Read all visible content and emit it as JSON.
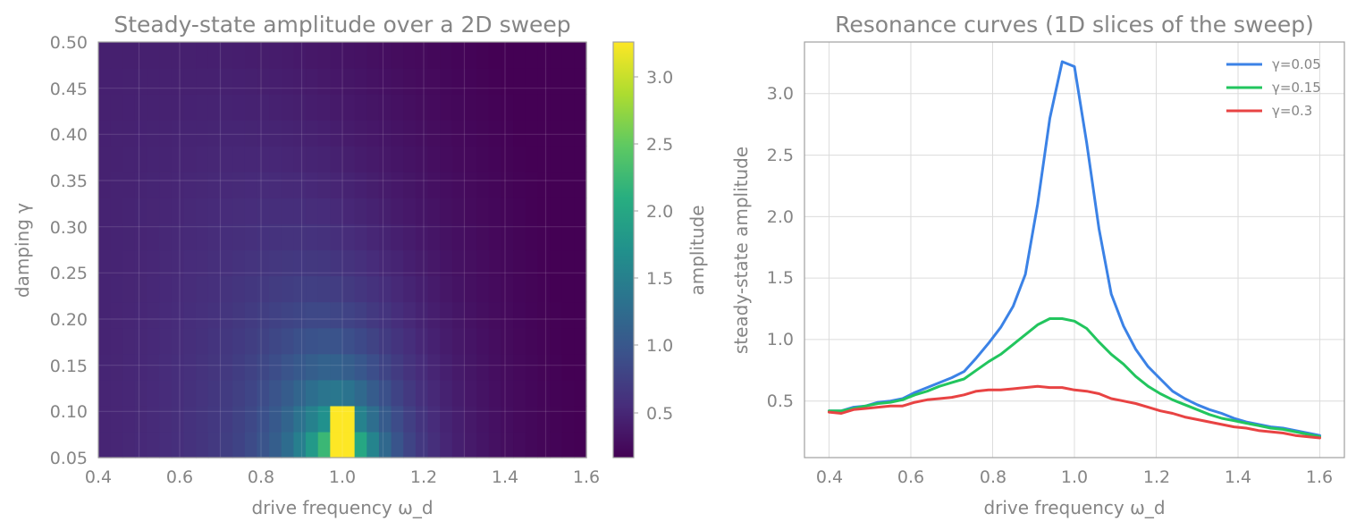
{
  "colors": {
    "text": "#858585",
    "axis_frame": "#a0a0a0",
    "grid": "#d9d9d9",
    "heatmap_grid": "#ffffff"
  },
  "chart_data": [
    {
      "type": "heatmap",
      "title": "Steady-state amplitude over a 2D sweep",
      "xlabel": "drive frequency ω_d",
      "ylabel": "damping γ",
      "colorbar_label": "amplitude",
      "colormap": "viridis",
      "xlim": [
        0.4,
        1.6
      ],
      "ylim": [
        0.05,
        0.5
      ],
      "clim": [
        0.18,
        3.26
      ],
      "grid": true,
      "x_ticks": [
        "0.4",
        "0.6",
        "0.8",
        "1.0",
        "1.2",
        "1.4",
        "1.6"
      ],
      "y_ticks": [
        "0.05",
        "0.10",
        "0.15",
        "0.20",
        "0.25",
        "0.30",
        "0.35",
        "0.40",
        "0.45",
        "0.50"
      ],
      "colorbar_ticks": [
        "0.5",
        "1.0",
        "1.5",
        "2.0",
        "2.5",
        "3.0"
      ],
      "x_values": [
        0.4,
        0.5,
        0.6,
        0.7,
        0.8,
        0.9,
        1.0,
        1.1,
        1.2,
        1.3,
        1.4,
        1.5,
        1.6
      ],
      "y_values": [
        0.05,
        0.1,
        0.15,
        0.2,
        0.25,
        0.3,
        0.35,
        0.4,
        0.45,
        0.5
      ]
    },
    {
      "type": "line",
      "title": "Resonance curves (1D slices of the sweep)",
      "xlabel": "drive frequency ω_d",
      "ylabel": "steady-state amplitude",
      "xlim": [
        0.34,
        1.66
      ],
      "ylim": [
        0.04,
        3.42
      ],
      "grid": true,
      "legend_position": "top-right",
      "x_ticks": [
        "0.4",
        "0.6",
        "0.8",
        "1.0",
        "1.2",
        "1.4",
        "1.6"
      ],
      "y_ticks": [
        "0.5",
        "1.0",
        "1.5",
        "2.0",
        "2.5",
        "3.0"
      ],
      "x": [
        0.4,
        0.43,
        0.46,
        0.49,
        0.52,
        0.55,
        0.58,
        0.61,
        0.64,
        0.67,
        0.7,
        0.73,
        0.76,
        0.79,
        0.82,
        0.85,
        0.88,
        0.91,
        0.94,
        0.97,
        1.0,
        1.03,
        1.06,
        1.09,
        1.12,
        1.15,
        1.18,
        1.21,
        1.24,
        1.27,
        1.3,
        1.33,
        1.36,
        1.39,
        1.42,
        1.45,
        1.48,
        1.51,
        1.54,
        1.57,
        1.6
      ],
      "series": [
        {
          "name": "γ=0.05",
          "color": "#3b82e6",
          "values": [
            0.42,
            0.42,
            0.45,
            0.46,
            0.49,
            0.5,
            0.52,
            0.57,
            0.61,
            0.65,
            0.69,
            0.74,
            0.85,
            0.97,
            1.1,
            1.27,
            1.53,
            2.1,
            2.8,
            3.26,
            3.22,
            2.6,
            1.9,
            1.37,
            1.11,
            0.92,
            0.78,
            0.68,
            0.58,
            0.52,
            0.47,
            0.43,
            0.4,
            0.36,
            0.33,
            0.31,
            0.29,
            0.28,
            0.26,
            0.24,
            0.22
          ]
        },
        {
          "name": "γ=0.15",
          "color": "#22c55e",
          "values": [
            0.42,
            0.42,
            0.44,
            0.46,
            0.48,
            0.49,
            0.51,
            0.55,
            0.58,
            0.62,
            0.65,
            0.68,
            0.75,
            0.82,
            0.88,
            0.96,
            1.04,
            1.12,
            1.17,
            1.17,
            1.15,
            1.09,
            0.98,
            0.88,
            0.8,
            0.7,
            0.62,
            0.56,
            0.51,
            0.47,
            0.43,
            0.39,
            0.36,
            0.34,
            0.32,
            0.3,
            0.28,
            0.27,
            0.25,
            0.23,
            0.21
          ]
        },
        {
          "name": "γ=0.3",
          "color": "#e84343",
          "values": [
            0.41,
            0.4,
            0.43,
            0.44,
            0.45,
            0.46,
            0.46,
            0.49,
            0.51,
            0.52,
            0.53,
            0.55,
            0.58,
            0.59,
            0.59,
            0.6,
            0.61,
            0.62,
            0.61,
            0.61,
            0.59,
            0.58,
            0.56,
            0.52,
            0.5,
            0.48,
            0.45,
            0.42,
            0.4,
            0.37,
            0.35,
            0.33,
            0.31,
            0.29,
            0.28,
            0.26,
            0.25,
            0.24,
            0.22,
            0.21,
            0.2
          ]
        }
      ]
    }
  ]
}
